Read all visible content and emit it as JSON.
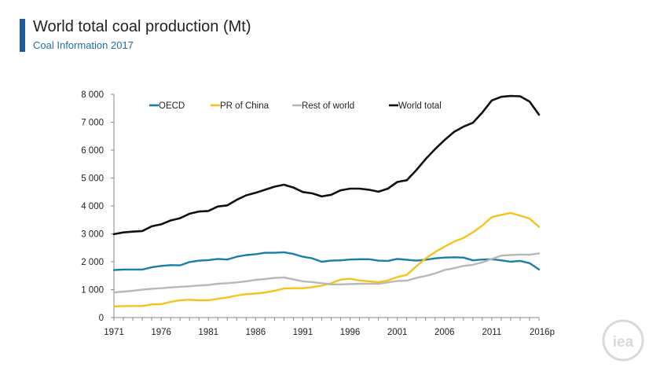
{
  "header": {
    "title": "World total coal production (Mt)",
    "subtitle": "Coal Information 2017"
  },
  "logo": {
    "text": "iea",
    "color": "#d9d9d9"
  },
  "chart_data": {
    "type": "line",
    "title": "World total coal production (Mt)",
    "subtitle": "Coal Information 2017",
    "xlabel": "",
    "ylabel": "",
    "x": [
      1971,
      1972,
      1973,
      1974,
      1975,
      1976,
      1977,
      1978,
      1979,
      1980,
      1981,
      1982,
      1983,
      1984,
      1985,
      1986,
      1987,
      1988,
      1989,
      1990,
      1991,
      1992,
      1993,
      1994,
      1995,
      1996,
      1997,
      1998,
      1999,
      2000,
      2001,
      2002,
      2003,
      2004,
      2005,
      2006,
      2007,
      2008,
      2009,
      2010,
      2011,
      2012,
      2013,
      2014,
      2015,
      2016
    ],
    "xlim": [
      1971,
      2016
    ],
    "ylim": [
      0,
      8000
    ],
    "y_ticks": [
      {
        "value": 0,
        "label": "0"
      },
      {
        "value": 1000,
        "label": "1 000"
      },
      {
        "value": 2000,
        "label": "2 000"
      },
      {
        "value": 3000,
        "label": "3 000"
      },
      {
        "value": 4000,
        "label": "4 000"
      },
      {
        "value": 5000,
        "label": "5 000"
      },
      {
        "value": 6000,
        "label": "6 000"
      },
      {
        "value": 7000,
        "label": "7 000"
      },
      {
        "value": 8000,
        "label": "8 000"
      }
    ],
    "x_ticks": [
      {
        "value": 1971,
        "label": "1971"
      },
      {
        "value": 1976,
        "label": "1976"
      },
      {
        "value": 1981,
        "label": "1981"
      },
      {
        "value": 1986,
        "label": "1986"
      },
      {
        "value": 1991,
        "label": "1991"
      },
      {
        "value": 1996,
        "label": "1996"
      },
      {
        "value": 2001,
        "label": "2001"
      },
      {
        "value": 2006,
        "label": "2006"
      },
      {
        "value": 2011,
        "label": "2011"
      },
      {
        "value": 2016,
        "label": "2016p"
      }
    ],
    "grid": false,
    "legend_position": "top",
    "series": [
      {
        "name": "OECD",
        "color": "#1a7fa6",
        "values": [
          1700,
          1720,
          1720,
          1720,
          1800,
          1850,
          1880,
          1870,
          1990,
          2040,
          2060,
          2100,
          2080,
          2180,
          2240,
          2270,
          2320,
          2320,
          2340,
          2280,
          2180,
          2120,
          2000,
          2040,
          2050,
          2080,
          2090,
          2090,
          2040,
          2030,
          2100,
          2070,
          2040,
          2070,
          2120,
          2150,
          2160,
          2150,
          2050,
          2080,
          2090,
          2050,
          2000,
          2030,
          1950,
          1720
        ]
      },
      {
        "name": "PR of China",
        "color": "#f7c31b",
        "values": [
          400,
          410,
          415,
          415,
          470,
          480,
          560,
          620,
          640,
          620,
          620,
          670,
          720,
          790,
          840,
          860,
          900,
          960,
          1040,
          1050,
          1050,
          1090,
          1140,
          1230,
          1360,
          1390,
          1330,
          1300,
          1270,
          1330,
          1450,
          1530,
          1830,
          2120,
          2350,
          2540,
          2720,
          2850,
          3050,
          3300,
          3600,
          3680,
          3750,
          3650,
          3550,
          3250
        ]
      },
      {
        "name": "Rest of world",
        "color": "#b8b8b8",
        "values": [
          900,
          930,
          960,
          1000,
          1030,
          1050,
          1080,
          1100,
          1120,
          1150,
          1170,
          1210,
          1230,
          1260,
          1300,
          1350,
          1380,
          1420,
          1440,
          1370,
          1300,
          1270,
          1230,
          1190,
          1190,
          1200,
          1210,
          1210,
          1210,
          1260,
          1310,
          1320,
          1420,
          1490,
          1580,
          1700,
          1770,
          1850,
          1890,
          1980,
          2100,
          2220,
          2240,
          2260,
          2250,
          2300
        ]
      },
      {
        "name": "World total",
        "color": "#111111",
        "values": [
          2990,
          3050,
          3080,
          3100,
          3270,
          3340,
          3480,
          3560,
          3720,
          3800,
          3820,
          3980,
          4020,
          4220,
          4380,
          4470,
          4580,
          4690,
          4760,
          4660,
          4500,
          4450,
          4340,
          4400,
          4560,
          4620,
          4620,
          4580,
          4510,
          4620,
          4860,
          4920,
          5280,
          5680,
          6040,
          6360,
          6650,
          6840,
          6980,
          7350,
          7780,
          7910,
          7940,
          7930,
          7740,
          7270
        ]
      }
    ]
  }
}
